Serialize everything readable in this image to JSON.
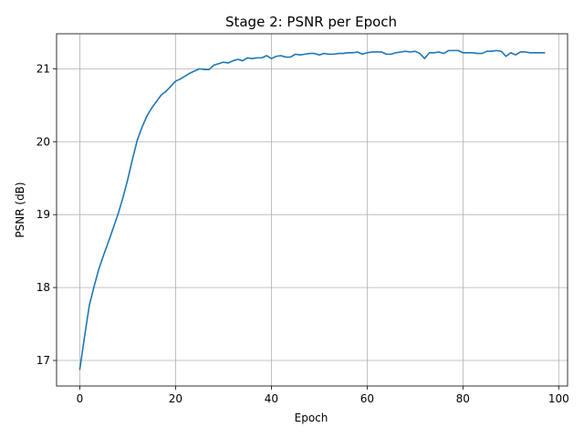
{
  "chart_data": {
    "type": "line",
    "title": "Stage 2: PSNR per Epoch",
    "xlabel": "Epoch",
    "ylabel": "PSNR (dB)",
    "xlim": [
      -4.85,
      101.85
    ],
    "ylim": [
      16.65,
      21.48
    ],
    "xticks": [
      0,
      20,
      40,
      60,
      80,
      100
    ],
    "yticks": [
      17,
      18,
      19,
      20,
      21
    ],
    "grid": true,
    "series": [
      {
        "color": "#1f77b4",
        "x": [
          0,
          1,
          2,
          3,
          4,
          5,
          6,
          7,
          8,
          9,
          10,
          11,
          12,
          13,
          14,
          15,
          16,
          17,
          18,
          19,
          20,
          21,
          22,
          23,
          24,
          25,
          26,
          27,
          28,
          29,
          30,
          31,
          32,
          33,
          34,
          35,
          36,
          37,
          38,
          39,
          40,
          41,
          42,
          43,
          44,
          45,
          46,
          47,
          48,
          49,
          50,
          51,
          52,
          53,
          54,
          55,
          56,
          57,
          58,
          59,
          60,
          61,
          62,
          63,
          64,
          65,
          66,
          67,
          68,
          69,
          70,
          71,
          72,
          73,
          74,
          75,
          76,
          77,
          78,
          79,
          80,
          81,
          82,
          83,
          84,
          85,
          86,
          87,
          88,
          89,
          90,
          91,
          92,
          93,
          94,
          95,
          96,
          97
        ],
        "y": [
          16.88,
          17.33,
          17.76,
          18.02,
          18.26,
          18.45,
          18.63,
          18.82,
          19.01,
          19.23,
          19.48,
          19.76,
          20.02,
          20.2,
          20.35,
          20.46,
          20.55,
          20.64,
          20.69,
          20.76,
          20.83,
          20.86,
          20.9,
          20.94,
          20.97,
          21.0,
          20.99,
          20.99,
          21.05,
          21.07,
          21.09,
          21.08,
          21.11,
          21.13,
          21.11,
          21.15,
          21.14,
          21.15,
          21.15,
          21.18,
          21.14,
          21.17,
          21.18,
          21.16,
          21.16,
          21.2,
          21.19,
          21.2,
          21.21,
          21.21,
          21.19,
          21.21,
          21.2,
          21.2,
          21.21,
          21.21,
          21.22,
          21.22,
          21.23,
          21.2,
          21.22,
          21.23,
          21.23,
          21.23,
          21.2,
          21.2,
          21.22,
          21.23,
          21.24,
          21.23,
          21.24,
          21.21,
          21.14,
          21.22,
          21.22,
          21.23,
          21.21,
          21.25,
          21.25,
          21.25,
          21.22,
          21.22,
          21.22,
          21.21,
          21.21,
          21.24,
          21.24,
          21.25,
          21.24,
          21.17,
          21.22,
          21.19,
          21.23,
          21.23,
          21.22,
          21.22,
          21.22,
          21.22
        ]
      }
    ]
  }
}
